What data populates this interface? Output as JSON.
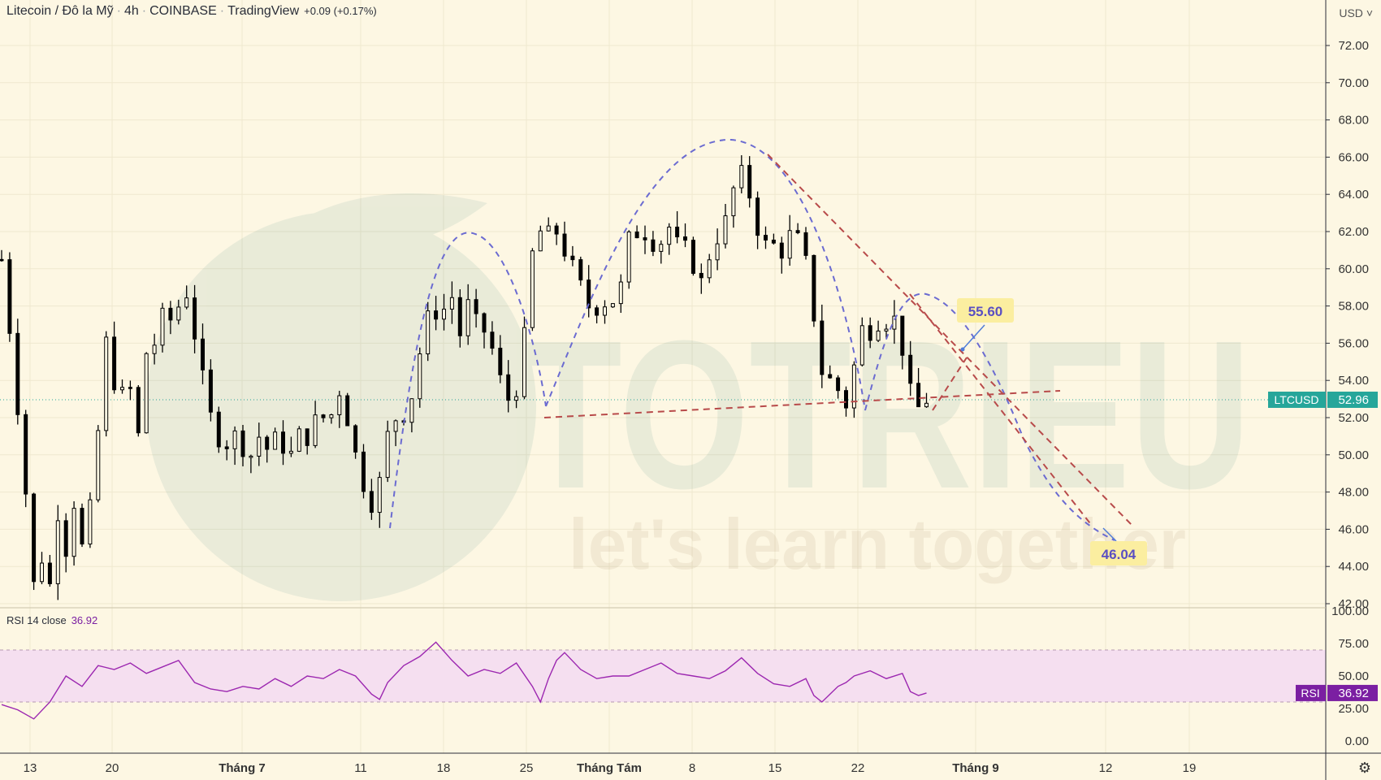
{
  "header": {
    "symbol": "Litecoin / Đô la Mỹ",
    "interval": "4h",
    "exchange": "COINBASE",
    "source": "TradingView",
    "change": "+0.09 (+0.17%)"
  },
  "currency": "USD",
  "currency_menu": "˅",
  "settings_icon": "gear-icon",
  "watermark": {
    "logo": "TOTRIEU",
    "slogan": "let's learn together"
  },
  "price_label": {
    "symbol": "LTCUSD",
    "value": "52.96"
  },
  "rsi_label": {
    "name": "RSI 14 close",
    "value": "36.92",
    "tag": "RSI",
    "tag_value": "36.92"
  },
  "colors": {
    "background": "#fdf7e3",
    "candle": "#000000",
    "pattern_arc": "#6b6bd1",
    "trend": "#b84a4a",
    "rsi_line": "#9c27b0",
    "rsi_band": "#f5dff0",
    "price_tag": "#26a69a",
    "rsi_tag": "#7b1fa2",
    "annotation_bg": "#fbeea0",
    "annotation_text": "#5a4fc2"
  },
  "chart_data": {
    "type": "candlestick",
    "ylim": [
      42,
      74
    ],
    "y_ticks": [
      "72.00",
      "70.00",
      "68.00",
      "66.00",
      "64.00",
      "62.00",
      "60.00",
      "58.00",
      "56.00",
      "54.00",
      "52.00",
      "50.00",
      "48.00",
      "46.00",
      "44.00",
      "42.00"
    ],
    "x_labels": [
      {
        "label": "13",
        "bold": false
      },
      {
        "label": "20",
        "bold": false
      },
      {
        "label": "Tháng 7",
        "bold": true
      },
      {
        "label": "11",
        "bold": false
      },
      {
        "label": "18",
        "bold": false
      },
      {
        "label": "25",
        "bold": false
      },
      {
        "label": "Tháng Tám",
        "bold": true
      },
      {
        "label": "8",
        "bold": false
      },
      {
        "label": "15",
        "bold": false
      },
      {
        "label": "22",
        "bold": false
      },
      {
        "label": "Tháng 9",
        "bold": true
      },
      {
        "label": "12",
        "bold": false
      },
      {
        "label": "19",
        "bold": false
      }
    ],
    "last_price": 52.96,
    "price_path": [
      [
        0,
        60.5
      ],
      [
        1.5,
        55
      ],
      [
        3,
        48
      ],
      [
        4,
        43
      ],
      [
        5,
        44.5
      ],
      [
        6,
        43
      ],
      [
        7,
        47
      ],
      [
        8,
        45
      ],
      [
        9,
        47.5
      ],
      [
        10,
        45
      ],
      [
        11.5,
        48
      ],
      [
        12.5,
        54.5
      ],
      [
        13,
        56
      ],
      [
        14.5,
        53
      ],
      [
        16,
        53.5
      ],
      [
        17,
        51
      ],
      [
        18,
        55.5
      ],
      [
        19,
        56
      ],
      [
        20.5,
        58
      ],
      [
        21.5,
        56.5
      ],
      [
        22.5,
        59.5
      ],
      [
        23.5,
        58
      ],
      [
        24.5,
        55
      ],
      [
        26,
        52
      ],
      [
        27.5,
        50.5
      ],
      [
        29,
        51
      ],
      [
        31,
        50
      ],
      [
        32,
        51
      ],
      [
        33.5,
        50
      ],
      [
        34.5,
        51.5
      ],
      [
        35.5,
        49.5
      ],
      [
        37,
        51
      ],
      [
        38.5,
        51
      ],
      [
        39.5,
        52.5
      ],
      [
        40.5,
        51.5
      ],
      [
        42,
        53.5
      ],
      [
        43,
        52
      ],
      [
        44,
        50
      ],
      [
        45,
        48.5
      ],
      [
        46,
        47.5
      ],
      [
        47,
        48.5
      ],
      [
        48,
        51
      ],
      [
        49.5,
        52.5
      ],
      [
        50.5,
        52
      ],
      [
        51.5,
        54.5
      ],
      [
        52.5,
        56.5
      ],
      [
        53.5,
        58
      ],
      [
        54.5,
        57.5
      ],
      [
        56,
        58.5
      ],
      [
        57,
        56.5
      ],
      [
        58,
        58
      ],
      [
        59,
        57
      ],
      [
        60.5,
        56.5
      ],
      [
        62,
        54
      ],
      [
        63,
        53
      ],
      [
        64.5,
        54
      ],
      [
        65.5,
        58.5
      ],
      [
        66.5,
        63
      ],
      [
        67.5,
        61
      ],
      [
        68.5,
        62.5
      ],
      [
        70,
        61
      ],
      [
        71,
        60
      ],
      [
        72.5,
        58.5
      ],
      [
        73.5,
        57.5
      ],
      [
        74.5,
        58.5
      ],
      [
        75.5,
        58
      ],
      [
        77,
        59
      ],
      [
        78,
        61.5
      ],
      [
        79,
        62
      ],
      [
        80.5,
        62
      ],
      [
        81.5,
        61
      ],
      [
        82.5,
        62
      ],
      [
        83.5,
        62.5
      ],
      [
        84.5,
        60
      ],
      [
        85.5,
        62
      ],
      [
        86.5,
        58.5
      ],
      [
        87.5,
        60
      ],
      [
        88.5,
        61.5
      ],
      [
        89.5,
        62
      ],
      [
        90.5,
        63
      ],
      [
        91.5,
        65.5
      ],
      [
        92.5,
        64.5
      ],
      [
        93.5,
        63.5
      ],
      [
        94.5,
        61
      ],
      [
        95.5,
        61.5
      ],
      [
        96.5,
        61
      ],
      [
        97.5,
        61
      ],
      [
        98.5,
        62.5
      ],
      [
        99.5,
        60.5
      ],
      [
        100.5,
        60
      ],
      [
        101.5,
        55
      ],
      [
        102.5,
        54
      ],
      [
        103.5,
        54
      ],
      [
        104.5,
        53
      ],
      [
        105.5,
        52.5
      ],
      [
        106.5,
        57
      ],
      [
        107.5,
        56.5
      ],
      [
        108.5,
        57
      ],
      [
        109.5,
        57.5
      ],
      [
        110.5,
        57
      ],
      [
        111.5,
        57.5
      ],
      [
        112.5,
        54
      ],
      [
        113.5,
        52.5
      ],
      [
        114.5,
        52.5
      ],
      [
        115,
        53
      ]
    ],
    "rsi": {
      "ylim": [
        0,
        100
      ],
      "y_ticks": [
        "100.00",
        "75.00",
        "50.00",
        "25.00",
        "0.00"
      ],
      "upper": 70,
      "lower": 30,
      "last": 36.92,
      "path": [
        [
          0,
          28
        ],
        [
          2,
          24
        ],
        [
          4,
          17
        ],
        [
          6,
          30
        ],
        [
          8,
          50
        ],
        [
          10,
          42
        ],
        [
          12,
          58
        ],
        [
          14,
          55
        ],
        [
          16,
          60
        ],
        [
          18,
          52
        ],
        [
          20,
          57
        ],
        [
          22,
          62
        ],
        [
          24,
          45
        ],
        [
          26,
          40
        ],
        [
          28,
          38
        ],
        [
          30,
          42
        ],
        [
          32,
          40
        ],
        [
          34,
          48
        ],
        [
          36,
          42
        ],
        [
          38,
          50
        ],
        [
          40,
          48
        ],
        [
          42,
          55
        ],
        [
          44,
          50
        ],
        [
          46,
          36
        ],
        [
          47,
          32
        ],
        [
          48,
          45
        ],
        [
          50,
          58
        ],
        [
          52,
          65
        ],
        [
          54,
          76
        ],
        [
          56,
          62
        ],
        [
          58,
          50
        ],
        [
          60,
          55
        ],
        [
          62,
          52
        ],
        [
          64,
          60
        ],
        [
          66,
          42
        ],
        [
          67,
          30
        ],
        [
          68,
          48
        ],
        [
          69,
          62
        ],
        [
          70,
          68
        ],
        [
          72,
          55
        ],
        [
          74,
          48
        ],
        [
          76,
          50
        ],
        [
          78,
          50
        ],
        [
          80,
          55
        ],
        [
          82,
          60
        ],
        [
          84,
          52
        ],
        [
          86,
          50
        ],
        [
          88,
          48
        ],
        [
          90,
          54
        ],
        [
          92,
          64
        ],
        [
          94,
          52
        ],
        [
          96,
          44
        ],
        [
          98,
          42
        ],
        [
          100,
          48
        ],
        [
          101,
          35
        ],
        [
          102,
          30
        ],
        [
          103,
          36
        ],
        [
          104,
          42
        ],
        [
          105,
          45
        ],
        [
          106,
          50
        ],
        [
          108,
          54
        ],
        [
          110,
          48
        ],
        [
          112,
          52
        ],
        [
          113,
          38
        ],
        [
          114,
          35
        ],
        [
          115,
          36.92
        ]
      ]
    },
    "annotations": [
      {
        "label": "55.60",
        "price": 55.6
      },
      {
        "label": "46.04",
        "price": 46.04
      }
    ]
  }
}
